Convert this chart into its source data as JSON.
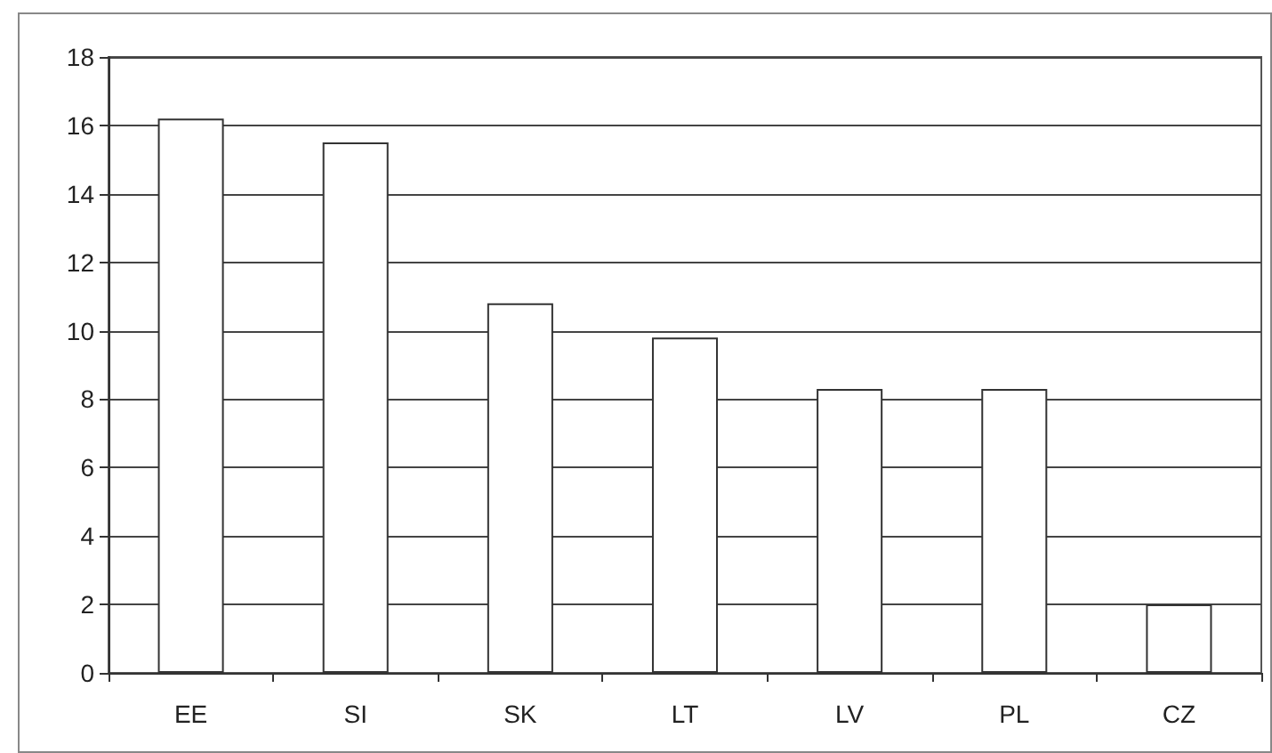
{
  "chart_data": {
    "type": "bar",
    "categories": [
      "EE",
      "SI",
      "SK",
      "LT",
      "LV",
      "PL",
      "CZ"
    ],
    "values": [
      16.2,
      15.5,
      10.8,
      9.8,
      8.3,
      8.3,
      2.0
    ],
    "color": "#ffffff",
    "ylim": [
      0,
      18
    ],
    "yticks": [
      0,
      2,
      4,
      6,
      8,
      10,
      12,
      14,
      16,
      18
    ],
    "grid": "y"
  }
}
